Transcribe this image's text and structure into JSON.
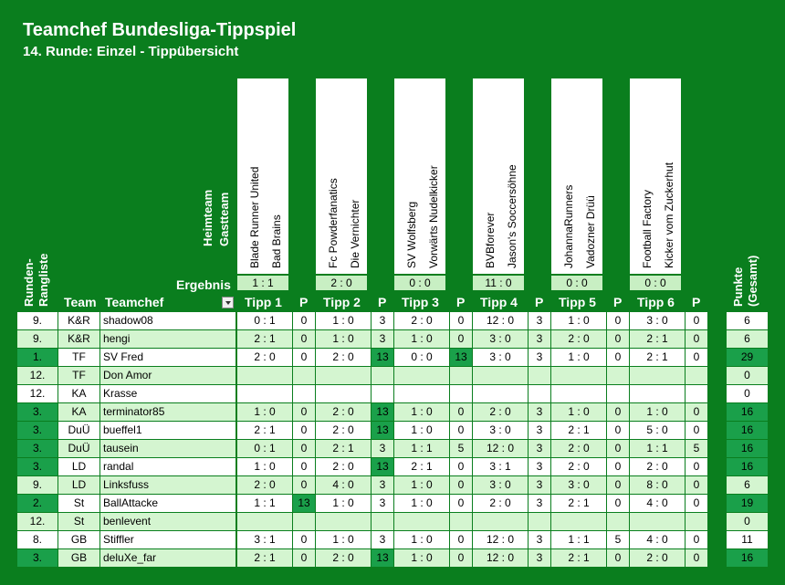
{
  "title": "Teamchef Bundesliga-Tippspiel",
  "subtitle": "14. Runde: Einzel - Tippübersicht",
  "header_labels": {
    "heimteam": "Heimteam",
    "gastteam": "Gastteam",
    "ergebnis": "Ergebnis",
    "rangliste": "Runden-\nRangliste",
    "team": "Team",
    "teamchef": "Teamchef",
    "punkte": "Punkte\n(Gesamt)"
  },
  "matches": [
    {
      "home": "Blade Runner United",
      "away": "Bad Brains",
      "result": "1 : 1",
      "tipp": "Tipp 1",
      "p": "P"
    },
    {
      "home": "Fc Powderfanatics",
      "away": "Die Vernichter",
      "result": "2 : 0",
      "tipp": "Tipp 2",
      "p": "P"
    },
    {
      "home": "SV Wolfsberg",
      "away": "Vorwärts Nudelkicker",
      "result": "0 : 0",
      "tipp": "Tipp 3",
      "p": "P"
    },
    {
      "home": "BVBforever",
      "away": "Jason's Soccersöhne",
      "result": "11 : 0",
      "tipp": "Tipp 4",
      "p": "P"
    },
    {
      "home": "JohannaRunners",
      "away": "Vadozner Drüü",
      "result": "0 : 0",
      "tipp": "Tipp 5",
      "p": "P"
    },
    {
      "home": "Football Factory",
      "away": "Kicker vom Zuckerhut",
      "result": "0 : 0",
      "tipp": "Tipp 6",
      "p": "P"
    }
  ],
  "colors": {
    "background": "#0a7e1e",
    "row_light": "#ffffff",
    "row_alt": "#d4f5d0",
    "highlight": "#1aa04a"
  },
  "rows": [
    {
      "rank": "9.",
      "team": "K&R",
      "chef": "shadow08",
      "tips": [
        "0 : 1",
        "1 : 0",
        "2 : 0",
        "12 : 0",
        "1 : 0",
        "3 : 0"
      ],
      "pts": [
        "0",
        "3",
        "0",
        "3",
        "0",
        "0"
      ],
      "total": "6",
      "hl": false
    },
    {
      "rank": "9.",
      "team": "K&R",
      "chef": "hengi",
      "tips": [
        "2 : 1",
        "1 : 0",
        "1 : 0",
        "3 : 0",
        "2 : 0",
        "2 : 1"
      ],
      "pts": [
        "0",
        "3",
        "0",
        "3",
        "0",
        "0"
      ],
      "total": "6",
      "hl": false
    },
    {
      "rank": "1.",
      "team": "TF",
      "chef": "SV Fred",
      "tips": [
        "2 : 0",
        "2 : 0",
        "0 : 0",
        "3 : 0",
        "1 : 0",
        "2 : 1"
      ],
      "pts": [
        "0",
        "13",
        "13",
        "3",
        "0",
        "0"
      ],
      "total": "29",
      "hl": true
    },
    {
      "rank": "12.",
      "team": "TF",
      "chef": "Don Amor",
      "tips": [
        "",
        "",
        "",
        "",
        "",
        ""
      ],
      "pts": [
        "",
        "",
        "",
        "",
        "",
        ""
      ],
      "total": "0",
      "hl": false
    },
    {
      "rank": "12.",
      "team": "KA",
      "chef": "Krasse",
      "tips": [
        "",
        "",
        "",
        "",
        "",
        ""
      ],
      "pts": [
        "",
        "",
        "",
        "",
        "",
        ""
      ],
      "total": "0",
      "hl": false
    },
    {
      "rank": "3.",
      "team": "KA",
      "chef": "terminator85",
      "tips": [
        "1 : 0",
        "2 : 0",
        "1 : 0",
        "2 : 0",
        "1 : 0",
        "1 : 0"
      ],
      "pts": [
        "0",
        "13",
        "0",
        "3",
        "0",
        "0"
      ],
      "total": "16",
      "hl": true
    },
    {
      "rank": "3.",
      "team": "DuÜ",
      "chef": "bueffel1",
      "tips": [
        "2 : 1",
        "2 : 0",
        "1 : 0",
        "3 : 0",
        "2 : 1",
        "5 : 0"
      ],
      "pts": [
        "0",
        "13",
        "0",
        "3",
        "0",
        "0"
      ],
      "total": "16",
      "hl": true
    },
    {
      "rank": "3.",
      "team": "DuÜ",
      "chef": "tausein",
      "tips": [
        "0 : 1",
        "2 : 1",
        "1 : 1",
        "12 : 0",
        "2 : 0",
        "1 : 1"
      ],
      "pts": [
        "0",
        "3",
        "5",
        "3",
        "0",
        "5"
      ],
      "total": "16",
      "hl": true
    },
    {
      "rank": "3.",
      "team": "LD",
      "chef": "randal",
      "tips": [
        "1 : 0",
        "2 : 0",
        "2 : 1",
        "3 : 1",
        "2 : 0",
        "2 : 0"
      ],
      "pts": [
        "0",
        "13",
        "0",
        "3",
        "0",
        "0"
      ],
      "total": "16",
      "hl": true
    },
    {
      "rank": "9.",
      "team": "LD",
      "chef": "Linksfuss",
      "tips": [
        "2 : 0",
        "4 : 0",
        "1 : 0",
        "3 : 0",
        "3 : 0",
        "8 : 0"
      ],
      "pts": [
        "0",
        "3",
        "0",
        "3",
        "0",
        "0"
      ],
      "total": "6",
      "hl": false
    },
    {
      "rank": "2.",
      "team": "St",
      "chef": "BallAttacke",
      "tips": [
        "1 : 1",
        "1 : 0",
        "1 : 0",
        "2 : 0",
        "2 : 1",
        "4 : 0"
      ],
      "pts": [
        "13",
        "3",
        "0",
        "3",
        "0",
        "0"
      ],
      "total": "19",
      "hl": true
    },
    {
      "rank": "12.",
      "team": "St",
      "chef": "benlevent",
      "tips": [
        "",
        "",
        "",
        "",
        "",
        ""
      ],
      "pts": [
        "",
        "",
        "",
        "",
        "",
        ""
      ],
      "total": "0",
      "hl": false
    },
    {
      "rank": "8.",
      "team": "GB",
      "chef": "Stiffler",
      "tips": [
        "3 : 1",
        "1 : 0",
        "1 : 0",
        "12 : 0",
        "1 : 1",
        "4 : 0"
      ],
      "pts": [
        "0",
        "3",
        "0",
        "3",
        "5",
        "0"
      ],
      "total": "11",
      "hl": false
    },
    {
      "rank": "3.",
      "team": "GB",
      "chef": "deluXe_far",
      "tips": [
        "2 : 1",
        "2 : 0",
        "1 : 0",
        "12 : 0",
        "2 : 1",
        "2 : 0"
      ],
      "pts": [
        "0",
        "13",
        "0",
        "3",
        "0",
        "0"
      ],
      "total": "16",
      "hl": true
    }
  ]
}
